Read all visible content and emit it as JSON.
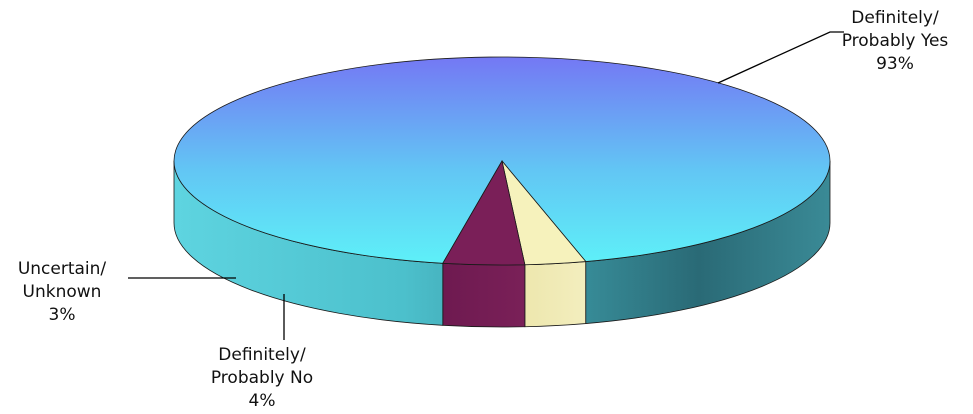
{
  "chart_data": {
    "type": "pie",
    "title": "",
    "categories": [
      "Definitely/ Probably Yes",
      "Definitely/ Probably No",
      "Uncertain/ Unknown"
    ],
    "values": [
      93,
      4,
      3
    ],
    "unit": "%",
    "slices": [
      {
        "label_lines": [
          "Definitely/",
          "Probably Yes"
        ],
        "pct_label": "93%",
        "value": 93,
        "color_top": "#7478f4",
        "color_top_2": "#5ee8f6",
        "color_side": "#3aa8b4"
      },
      {
        "label_lines": [
          "Definitely/",
          "Probably No"
        ],
        "pct_label": "4%",
        "value": 4,
        "color_top": "#7a1f58",
        "color_side": "#6a1a4c"
      },
      {
        "label_lines": [
          "Uncertain/",
          "Unknown"
        ],
        "pct_label": "3%",
        "value": 3,
        "color_top": "#f6f2bc",
        "color_side": "#e6e0a6"
      }
    ],
    "legend": "none",
    "style": "3d-tilted"
  }
}
